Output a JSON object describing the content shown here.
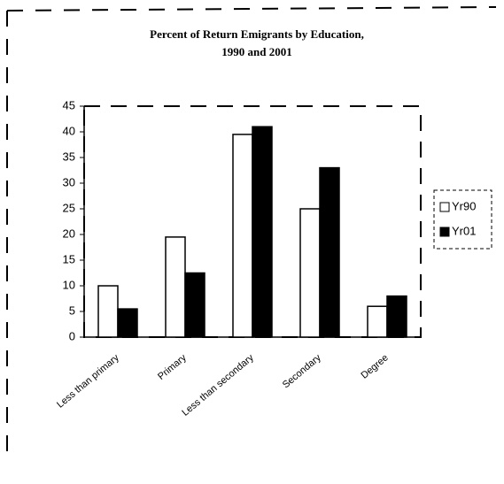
{
  "chart_data": {
    "type": "bar",
    "title": [
      "Percent of Return Emigrants by Education,",
      "1990 and 2001"
    ],
    "categories": [
      "Less than primary",
      "Primary",
      "Less than secondary",
      "Secondary",
      "Degree"
    ],
    "series": [
      {
        "name": "Yr90",
        "color": "#ffffff",
        "values": [
          10,
          19.5,
          39.5,
          25,
          6
        ]
      },
      {
        "name": "Yr01",
        "color": "#000000",
        "values": [
          5.5,
          12.5,
          41,
          33,
          8
        ]
      }
    ],
    "ylim": [
      0,
      45
    ],
    "yticks": [
      0,
      5,
      10,
      15,
      20,
      25,
      30,
      35,
      40,
      45
    ],
    "grid": false,
    "legend": "right"
  }
}
